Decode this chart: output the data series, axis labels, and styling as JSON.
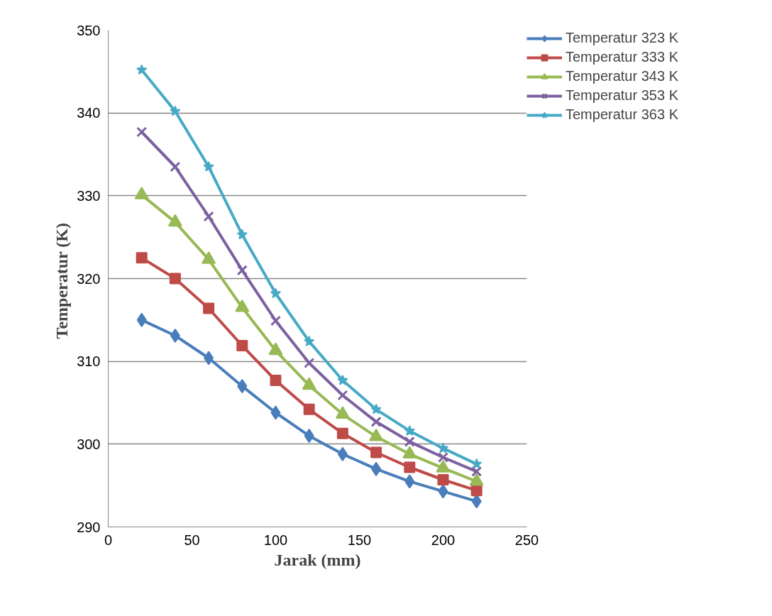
{
  "chart_data": {
    "type": "line",
    "xlabel": "Jarak (mm)",
    "ylabel": "Temperatur  (K)",
    "x": [
      20,
      40,
      60,
      80,
      100,
      120,
      140,
      160,
      180,
      200,
      220
    ],
    "xlim": [
      0,
      250
    ],
    "xticks": [
      0,
      50,
      100,
      150,
      200,
      250
    ],
    "ylim": [
      290,
      350
    ],
    "yticks": [
      290,
      300,
      310,
      320,
      330,
      340,
      350
    ],
    "grid": "y",
    "legend": "right",
    "series": [
      {
        "name": "Temperatur 323 K",
        "color": "#4a7ebb",
        "marker": "diamond",
        "values": [
          315.0,
          313.1,
          310.4,
          307.0,
          303.8,
          301.0,
          298.8,
          297.0,
          295.5,
          294.3,
          293.1
        ]
      },
      {
        "name": "Temperatur 333 K",
        "color": "#be4b48",
        "marker": "square",
        "values": [
          322.5,
          320.0,
          316.4,
          311.9,
          307.7,
          304.2,
          301.3,
          299.0,
          297.2,
          295.7,
          294.4
        ]
      },
      {
        "name": "Temperatur 343 K",
        "color": "#98b954",
        "marker": "triangle",
        "values": [
          330.1,
          326.8,
          322.3,
          316.5,
          311.3,
          307.1,
          303.6,
          300.9,
          298.8,
          297.1,
          295.5
        ]
      },
      {
        "name": "Temperatur 353 K",
        "color": "#7d60a0",
        "marker": "cross",
        "values": [
          337.7,
          333.5,
          327.5,
          321.0,
          314.9,
          309.8,
          305.9,
          302.7,
          300.3,
          298.4,
          296.7
        ]
      },
      {
        "name": "Temperatur 363 K",
        "color": "#46aac5",
        "marker": "star",
        "values": [
          345.2,
          340.2,
          333.5,
          325.3,
          318.2,
          312.4,
          307.7,
          304.2,
          301.6,
          299.5,
          297.6
        ]
      }
    ]
  }
}
